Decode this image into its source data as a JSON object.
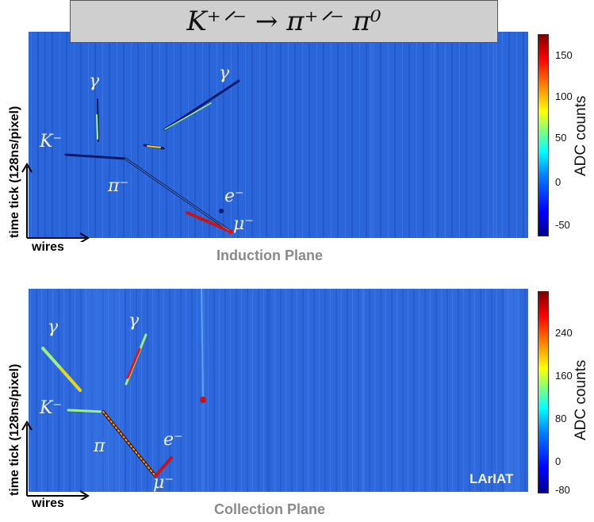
{
  "title": "K⁺ᐟ⁻ → π⁺ᐟ⁻ π⁰",
  "induction": {
    "plane_label": "Induction Plane",
    "y_label": "time tick (128ns/pixel)",
    "x_label": "wires",
    "colorbar_label": "ADC counts",
    "colorbar_ticks": [
      "150",
      "100",
      "50",
      "0",
      "-50"
    ],
    "particles": {
      "gamma1": "γ",
      "gamma2": "γ",
      "kaon": "K⁻",
      "pion": "π⁻",
      "electron": "e⁻",
      "muon": "μ⁻"
    }
  },
  "collection": {
    "plane_label": "Collection Plane",
    "y_label": "time tick (128ns/pixel)",
    "x_label": "wires",
    "colorbar_label": "ADC counts",
    "colorbar_ticks": [
      "240",
      "160",
      "80",
      "0",
      "-80"
    ],
    "particles": {
      "gamma1": "γ",
      "gamma2": "γ",
      "kaon": "K⁻",
      "pion": "π",
      "electron": "e⁻",
      "muon": "μ⁻"
    },
    "watermark": "LArIAT"
  },
  "colors": {
    "background_field": "#2a63d8",
    "track_dark": "#0a1a6a",
    "track_hot": "#c81414",
    "track_mid": "#8fe060"
  }
}
